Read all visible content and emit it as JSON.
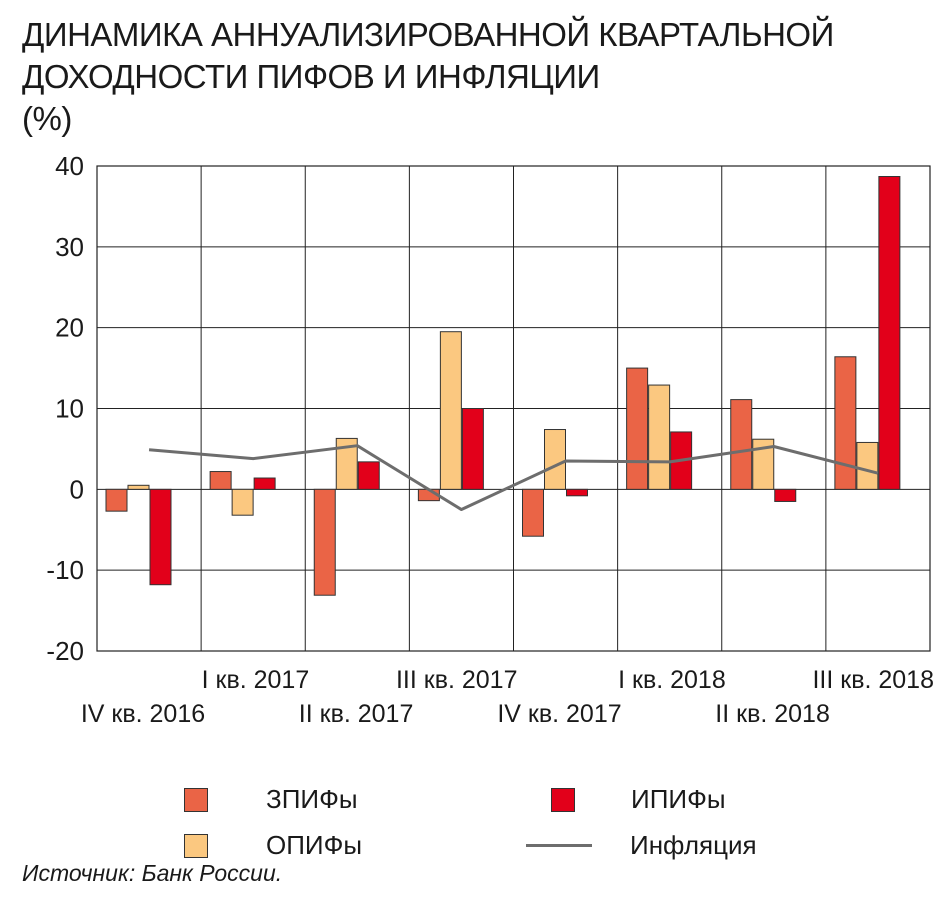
{
  "title": {
    "line1": "ДИНАМИКА АННУАЛИЗИРОВАННОЙ КВАРТАЛЬНОЙ",
    "line2": "ДОХОДНОСТИ ПИФОВ И ИНФЛЯЦИИ",
    "line3": "(%)"
  },
  "chart_data": {
    "type": "bar",
    "categories": [
      "IV кв. 2016",
      "I кв. 2017",
      "II кв. 2017",
      "III кв. 2017",
      "IV кв. 2017",
      "I кв. 2018",
      "II кв. 2018",
      "III кв. 2018"
    ],
    "series": [
      {
        "name": "ЗПИФы",
        "type": "bar",
        "color": "#ea6446",
        "values": [
          -2.7,
          2.2,
          -13.1,
          -1.4,
          -5.8,
          15.0,
          11.1,
          16.4
        ]
      },
      {
        "name": "ОПИФы",
        "type": "bar",
        "color": "#fbc880",
        "values": [
          0.5,
          -3.2,
          6.3,
          19.5,
          7.4,
          12.9,
          6.2,
          5.8
        ]
      },
      {
        "name": "ИПИФы",
        "type": "bar",
        "color": "#e2001a",
        "values": [
          -11.8,
          1.4,
          3.4,
          10.0,
          -0.8,
          7.1,
          -1.5,
          38.7
        ]
      },
      {
        "name": "Инфляция",
        "type": "line",
        "color": "#6d6d6d",
        "values": [
          4.9,
          3.8,
          5.4,
          -2.5,
          3.5,
          3.4,
          5.3,
          2.0
        ]
      }
    ],
    "ylim": [
      -20,
      40
    ],
    "yticks": [
      40,
      30,
      20,
      10,
      0,
      -10,
      -20
    ],
    "ytick_labels": [
      "40",
      "30",
      "20",
      "10",
      "0",
      "-10",
      "-20"
    ],
    "xlabel": "",
    "ylabel": "",
    "grid": true
  },
  "legend": {
    "zpif": "ЗПИФы",
    "opif": "ОПИФы",
    "ipif": "ИПИФы",
    "inflation": "Инфляция"
  },
  "source": "Источник: Банк России."
}
